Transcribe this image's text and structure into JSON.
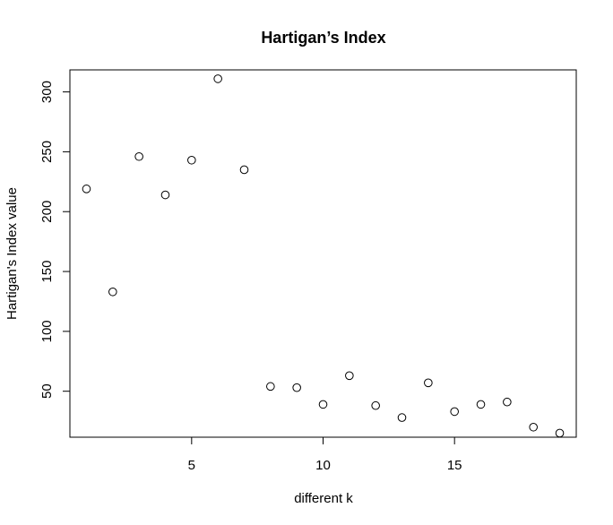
{
  "chart_data": {
    "type": "scatter",
    "title": "Hartigan’s Index",
    "xlabel": "different k",
    "ylabel": "Hartigan's Index value",
    "xlim": [
      0.37,
      19.63
    ],
    "ylim": [
      11.6,
      318.4
    ],
    "xticks": [
      5,
      10,
      15
    ],
    "yticks": [
      50,
      100,
      150,
      200,
      250,
      300
    ],
    "grid": false,
    "legend": "none",
    "marker": "open-circle",
    "x": [
      1,
      2,
      3,
      4,
      5,
      6,
      7,
      8,
      9,
      10,
      11,
      12,
      13,
      14,
      15,
      16,
      17,
      18,
      19
    ],
    "y": [
      219,
      133,
      246,
      214,
      243,
      311,
      235,
      54,
      53,
      39,
      63,
      38,
      28,
      57,
      33,
      39,
      41,
      20,
      15
    ]
  },
  "colors": {
    "background": "#ffffff",
    "axis": "#000000",
    "points": "#000000"
  }
}
